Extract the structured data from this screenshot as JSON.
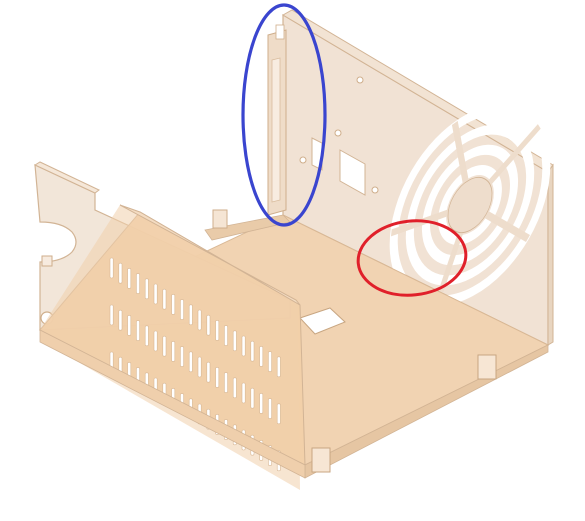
{
  "scene": {
    "subject": "sheet-metal-chassis-tray",
    "colors": {
      "background": "#ffffff",
      "metal_base": "#f1d3b2",
      "metal_light": "#f7e3cf",
      "metal_shadow": "#e2bf9a",
      "wall_translucent": "#eeddcc",
      "slot_fill": "#ffffff",
      "edge_stroke": "#d2b495",
      "blue_marker": "#3a45cf",
      "red_marker": "#e0202a"
    },
    "annotations": [
      {
        "shape": "ellipse",
        "color_name": "blue",
        "target": "rear-left-bend-tab"
      },
      {
        "shape": "ellipse",
        "color_name": "red",
        "target": "fan-grille-lower-left"
      }
    ],
    "fan_grille": {
      "rings": 4,
      "spokes": 5
    },
    "vent_rows": 3,
    "slots_per_row": 20
  }
}
